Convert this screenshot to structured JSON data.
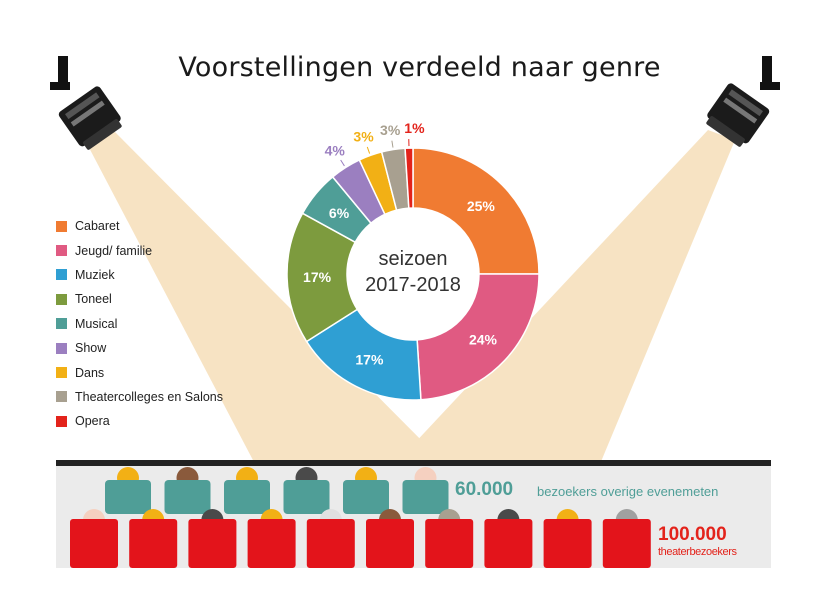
{
  "title": "Voorstellingen verdeeld naar genre",
  "center_label": [
    "seizoen",
    "2017-2018"
  ],
  "chart_data": {
    "type": "pie",
    "variant": "donut",
    "title": "Voorstellingen verdeeld naar genre",
    "slices": [
      {
        "name": "Cabaret",
        "value": 25,
        "label": "25%",
        "color": "#f07b32",
        "label_color": "#ffffff"
      },
      {
        "name": "Jeugd/ familie",
        "value": 24,
        "label": "24%",
        "color": "#e05a82",
        "label_color": "#ffffff"
      },
      {
        "name": "Muziek",
        "value": 17,
        "label": "17%",
        "color": "#2f9fd3",
        "label_color": "#ffffff"
      },
      {
        "name": "Toneel",
        "value": 17,
        "label": "17%",
        "color": "#7d9b3e",
        "label_color": "#ffffff"
      },
      {
        "name": "Musical",
        "value": 6,
        "label": "6%",
        "color": "#4f9e97",
        "label_color": "#ffffff"
      },
      {
        "name": "Show",
        "value": 4,
        "label": "4%",
        "color": "#9b7fc0",
        "label_color": "#9b7fc0"
      },
      {
        "name": "Dans",
        "value": 3,
        "label": "3%",
        "color": "#f2b015",
        "label_color": "#f2b015"
      },
      {
        "name": "Theatercolleges en Salons",
        "value": 3,
        "label": "3%",
        "color": "#a8a090",
        "label_color": "#a8a090"
      },
      {
        "name": "Opera",
        "value": 1,
        "label": "1%",
        "color": "#e3231b",
        "label_color": "#e3231b"
      }
    ],
    "legend_position": "left"
  },
  "stats": {
    "other_events": {
      "number": "60.000",
      "text": "bezoekers overige evenemeten",
      "color": "#4f9e97"
    },
    "theatre": {
      "number": "100.000",
      "text": "theaterbezoekers",
      "color": "#e3231b"
    }
  },
  "colors": {
    "beam": "#f7e3c3",
    "floor": "#ebebeb",
    "stage_edge": "#222222",
    "green_seat": "#4f9e97",
    "red_seat": "#e3141b"
  },
  "audience": {
    "back_heads": [
      "#f2b015",
      "#8a5a3c",
      "#f2b015",
      "#4a4a4a",
      "#f2b015",
      "#f5d0c0"
    ],
    "front_heads": [
      "#f5d0c0",
      "#f2b015",
      "#4a4a4a",
      "#f2b015",
      "#e0e0e0",
      "#8a5a3c",
      "#a8a090",
      "#4a4a4a",
      "#f2b015",
      "#a0a0a0"
    ]
  }
}
